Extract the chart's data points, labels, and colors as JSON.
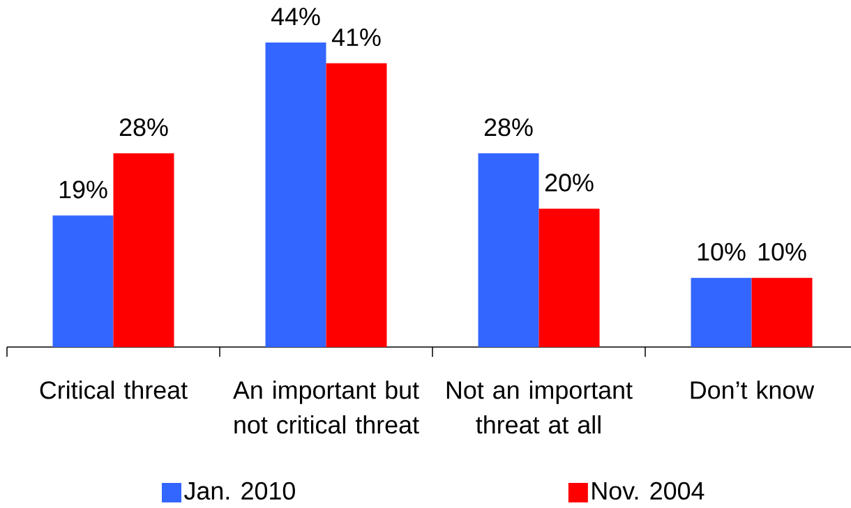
{
  "chart_data": {
    "type": "bar",
    "categories": [
      "Critical threat",
      "An important but not critical threat",
      "Not an important threat at all",
      "Don’t know"
    ],
    "series": [
      {
        "name": "Jan. 2010",
        "color": "#3366ff",
        "values": [
          19,
          44,
          28,
          10
        ],
        "value_labels": [
          "19%",
          "44%",
          "28%",
          "10%"
        ]
      },
      {
        "name": "Nov. 2004",
        "color": "#ff0000",
        "values": [
          28,
          41,
          20,
          10
        ],
        "value_labels": [
          "28%",
          "41%",
          "20%",
          "10%"
        ]
      }
    ],
    "tick_labels": "x",
    "legend": "bottom"
  }
}
